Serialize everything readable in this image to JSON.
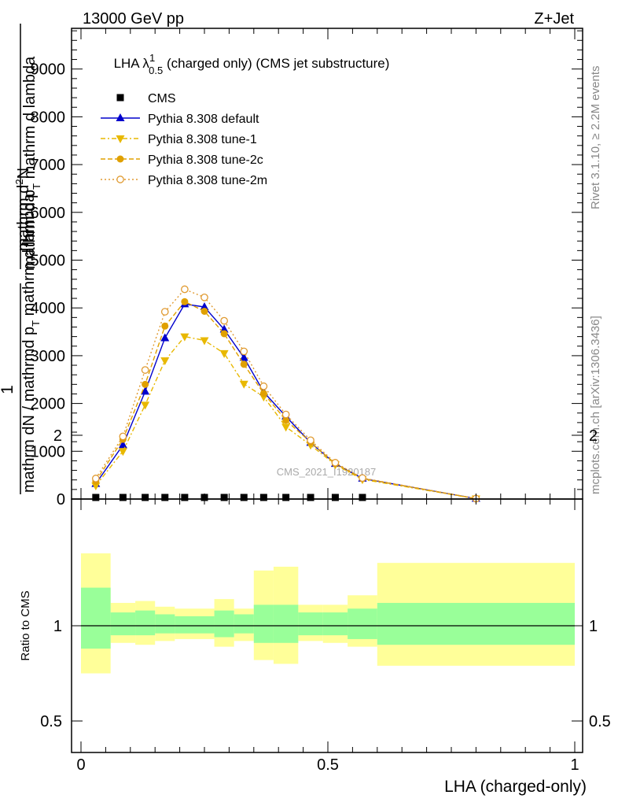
{
  "header": {
    "left": "13000 GeV pp",
    "right": "Z+Jet"
  },
  "side": {
    "rivet": "Rivet 3.1.10, ≥ 2.2M events",
    "mcplots": "mcplots.cern.ch [arXiv:1306.3436]"
  },
  "chart_data": [
    {
      "type": "line",
      "title_main": "LHA λ",
      "title_sup": "1",
      "title_sub": "0.5",
      "title_rest": " (charged only) (CMS jet substructure)",
      "xlabel": "LHA (charged-only)",
      "ylabel_num": "1",
      "ylabel_den": "mathrm dN / mathrmd p",
      "ylabel_den_sub": "T",
      "ylabel_den2": " mathrm d lambda",
      "ylabel_num2": "mathrm d",
      "ylabel_num2_sub": "2",
      "ylabel_num2_rest": "N",
      "ylabel_den3": "mathrm d p",
      "ylabel_den3_sub": "T",
      "ylabel_den3_rest": " mathrm d lambda",
      "watermark": "CMS_2021_I1920187",
      "xlim": [
        -0.02,
        1.02
      ],
      "ylim": [
        0,
        9800
      ],
      "xticks": [
        "0",
        "0.5",
        "1"
      ],
      "yticks": [
        "0",
        "1000",
        "2000",
        "3000",
        "4000",
        "5000",
        "6000",
        "7000",
        "8000",
        "9000"
      ],
      "yticks_visible": [
        "0",
        "1000",
        "2000",
        "3000",
        "4000",
        "5000",
        "6000",
        "7000",
        "8000",
        "9000"
      ],
      "cms_x": [
        0.03,
        0.085,
        0.13,
        0.17,
        0.21,
        0.25,
        0.29,
        0.33,
        0.37,
        0.415,
        0.465,
        0.515,
        0.57
      ],
      "series": [
        {
          "name": "CMS",
          "color": "#000000",
          "x": [
            0.03,
            0.085,
            0.13,
            0.17,
            0.21,
            0.25,
            0.29,
            0.33,
            0.37,
            0.415,
            0.465,
            0.515,
            0.57
          ],
          "y": [
            2,
            2,
            2,
            2,
            2,
            2,
            2,
            2,
            2,
            2,
            2,
            2,
            2
          ]
        },
        {
          "name": "Pythia 8.308 default",
          "color": "#0000cc",
          "x": [
            0.03,
            0.085,
            0.13,
            0.17,
            0.21,
            0.25,
            0.29,
            0.33,
            0.37,
            0.415,
            0.465,
            0.515,
            0.57,
            0.8
          ],
          "y": [
            320,
            1130,
            2250,
            3370,
            4080,
            4020,
            3550,
            2960,
            2240,
            1730,
            1180,
            740,
            430,
            10
          ]
        },
        {
          "name": "Pythia 8.308 tune-1",
          "color": "#e8b800",
          "x": [
            0.03,
            0.085,
            0.13,
            0.17,
            0.21,
            0.25,
            0.29,
            0.33,
            0.37,
            0.415,
            0.465,
            0.515,
            0.57,
            0.8
          ],
          "y": [
            280,
            1000,
            1970,
            2900,
            3400,
            3320,
            3050,
            2410,
            2140,
            1510,
            1130,
            720,
            410,
            8
          ]
        },
        {
          "name": "Pythia 8.308 tune-2c",
          "color": "#e0a000",
          "x": [
            0.03,
            0.085,
            0.13,
            0.17,
            0.21,
            0.25,
            0.29,
            0.33,
            0.37,
            0.415,
            0.465,
            0.515,
            0.57,
            0.8
          ],
          "y": [
            370,
            1250,
            2400,
            3620,
            4130,
            3930,
            3460,
            2820,
            2210,
            1650,
            1190,
            740,
            430,
            10
          ]
        },
        {
          "name": "Pythia 8.308 tune-2m",
          "color": "#e09a30",
          "x": [
            0.03,
            0.085,
            0.13,
            0.17,
            0.21,
            0.25,
            0.29,
            0.33,
            0.37,
            0.415,
            0.465,
            0.515,
            0.57,
            0.8
          ],
          "y": [
            430,
            1310,
            2700,
            3920,
            4390,
            4220,
            3730,
            3090,
            2360,
            1770,
            1230,
            760,
            440,
            10
          ]
        }
      ]
    },
    {
      "type": "area",
      "ylabel": "Ratio to CMS",
      "ylim": [
        0.36,
        2.28
      ],
      "yticks": [
        "0.5",
        "1",
        "2"
      ],
      "xticks": [
        "0",
        "0.5",
        "1"
      ],
      "bins": [
        {
          "x0": 0.0,
          "x1": 0.06,
          "stat": [
            0.88,
            1.2
          ],
          "total": [
            0.75,
            1.38
          ]
        },
        {
          "x0": 0.06,
          "x1": 0.11,
          "stat": [
            0.95,
            1.07
          ],
          "total": [
            0.91,
            1.12
          ]
        },
        {
          "x0": 0.11,
          "x1": 0.15,
          "stat": [
            0.95,
            1.08
          ],
          "total": [
            0.9,
            1.13
          ]
        },
        {
          "x0": 0.15,
          "x1": 0.19,
          "stat": [
            0.96,
            1.06
          ],
          "total": [
            0.92,
            1.1
          ]
        },
        {
          "x0": 0.19,
          "x1": 0.27,
          "stat": [
            0.96,
            1.05
          ],
          "total": [
            0.93,
            1.09
          ]
        },
        {
          "x0": 0.27,
          "x1": 0.31,
          "stat": [
            0.94,
            1.08
          ],
          "total": [
            0.89,
            1.14
          ]
        },
        {
          "x0": 0.31,
          "x1": 0.35,
          "stat": [
            0.96,
            1.06
          ],
          "total": [
            0.92,
            1.09
          ]
        },
        {
          "x0": 0.35,
          "x1": 0.39,
          "stat": [
            0.91,
            1.11
          ],
          "total": [
            0.82,
            1.29
          ]
        },
        {
          "x0": 0.39,
          "x1": 0.44,
          "stat": [
            0.91,
            1.11
          ],
          "total": [
            0.8,
            1.31
          ]
        },
        {
          "x0": 0.44,
          "x1": 0.49,
          "stat": [
            0.95,
            1.07
          ],
          "total": [
            0.92,
            1.11
          ]
        },
        {
          "x0": 0.49,
          "x1": 0.54,
          "stat": [
            0.95,
            1.07
          ],
          "total": [
            0.91,
            1.11
          ]
        },
        {
          "x0": 0.54,
          "x1": 0.6,
          "stat": [
            0.93,
            1.09
          ],
          "total": [
            0.89,
            1.16
          ]
        },
        {
          "x0": 0.6,
          "x1": 1.0,
          "stat": [
            0.9,
            1.12
          ],
          "total": [
            0.79,
            1.33
          ]
        }
      ]
    }
  ]
}
